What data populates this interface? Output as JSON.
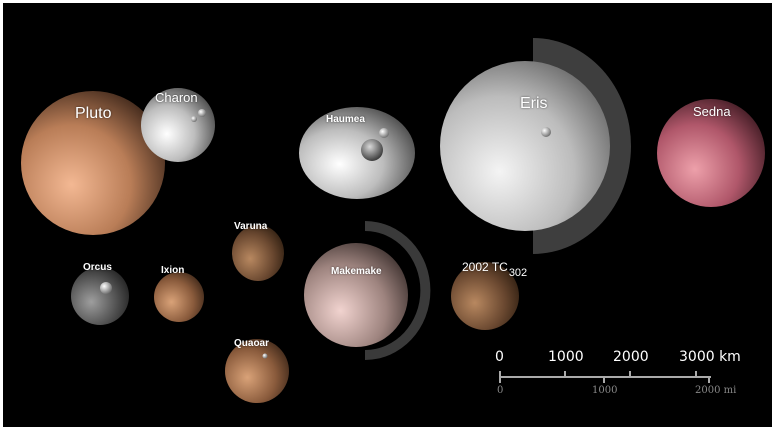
{
  "bodies": {
    "pluto": "Pluto",
    "charon": "Charon",
    "haumea": "Haumea",
    "eris": "Eris",
    "sedna": "Sedna",
    "orcus": "Orcus",
    "ixion": "Ixion",
    "varuna": "Varuna",
    "makemake": "Makemake",
    "tc302_main": "2002 TC",
    "tc302_sub": "302",
    "quaoar": "Quaoar"
  },
  "scale": {
    "km": [
      "0",
      "1000",
      "2000",
      "3000 km"
    ],
    "mi": [
      "0",
      "1000",
      "2000 mi"
    ]
  },
  "colors": {
    "background": "#000000",
    "pluto": "#c98a62",
    "eris": "#c8c8c8",
    "sedna": "#b35a6a",
    "makemake": "#a48a84"
  }
}
